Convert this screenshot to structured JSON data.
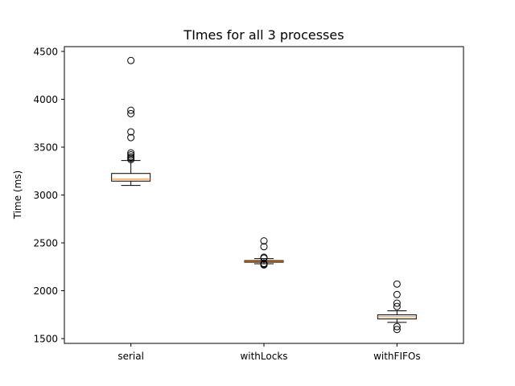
{
  "chart_data": {
    "type": "box",
    "title": "TImes for all 3 processes",
    "xlabel": "",
    "ylabel": "Time (ms)",
    "ylim": [
      1450,
      4550
    ],
    "yticks": [
      1500,
      2000,
      2500,
      3000,
      3500,
      4000,
      4500
    ],
    "grid": false,
    "categories": [
      "serial",
      "withLocks",
      "withFIFOs"
    ],
    "boxes": [
      {
        "category": "serial",
        "whisker_low": 3100,
        "q1": 3145,
        "median": 3165,
        "q3": 3225,
        "whisker_high": 3360,
        "outliers": [
          3370,
          3385,
          3400,
          3420,
          3440,
          3600,
          3660,
          3850,
          3885,
          4405
        ]
      },
      {
        "category": "withLocks",
        "whisker_low": 2282,
        "q1": 2298,
        "median": 2308,
        "q3": 2315,
        "whisker_high": 2335,
        "outliers": [
          2270,
          2278,
          2285,
          2340,
          2350,
          2460,
          2520
        ]
      },
      {
        "category": "withFIFOs",
        "whisker_low": 1670,
        "q1": 1705,
        "median": 1728,
        "q3": 1748,
        "whisker_high": 1790,
        "outliers": [
          1595,
          1625,
          1835,
          1870,
          1960,
          2070
        ]
      }
    ],
    "colors": {
      "box": "#000000",
      "median": "#ff7f0e",
      "outlier": "#000000"
    }
  }
}
